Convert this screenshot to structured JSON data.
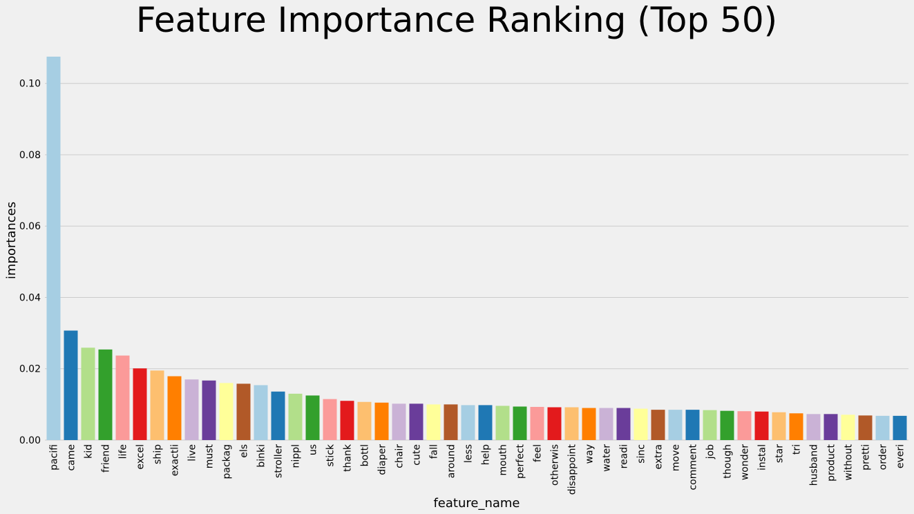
{
  "chart_data": {
    "type": "bar",
    "title": "Feature Importance Ranking (Top 50)",
    "xlabel": "feature_name",
    "ylabel": "importances",
    "ylim": [
      0,
      0.1075
    ],
    "yticks": [
      "0.00",
      "0.02",
      "0.04",
      "0.06",
      "0.08",
      "0.10"
    ],
    "grid": "horizontal",
    "palette": [
      "#a6cee3",
      "#1f78b4",
      "#b2df8a",
      "#33a02c",
      "#fb9a99",
      "#e31a1c",
      "#fdbf6f",
      "#ff7f00",
      "#cab2d6",
      "#6a3d9a",
      "#ffff99",
      "#b15928"
    ],
    "categories": [
      "pacifi",
      "came",
      "kid",
      "friend",
      "life",
      "excel",
      "ship",
      "exactli",
      "live",
      "must",
      "packag",
      "els",
      "binki",
      "stroller",
      "nippl",
      "us",
      "stick",
      "thank",
      "bottl",
      "diaper",
      "chair",
      "cute",
      "fall",
      "around",
      "less",
      "help",
      "mouth",
      "perfect",
      "feel",
      "otherwis",
      "disappoint",
      "way",
      "water",
      "readi",
      "sinc",
      "extra",
      "move",
      "comment",
      "job",
      "though",
      "wonder",
      "instal",
      "star",
      "tri",
      "husband",
      "product",
      "without",
      "pretti",
      "order",
      "everi"
    ],
    "values": [
      0.1075,
      0.0307,
      0.0259,
      0.0254,
      0.0237,
      0.0201,
      0.0195,
      0.0179,
      0.017,
      0.0167,
      0.016,
      0.0158,
      0.0154,
      0.0136,
      0.013,
      0.0125,
      0.0115,
      0.011,
      0.0107,
      0.0105,
      0.0102,
      0.0102,
      0.01,
      0.01,
      0.0098,
      0.0098,
      0.0096,
      0.0094,
      0.0093,
      0.0092,
      0.0092,
      0.009,
      0.009,
      0.009,
      0.0088,
      0.0085,
      0.0085,
      0.0085,
      0.0084,
      0.0082,
      0.0081,
      0.008,
      0.0078,
      0.0075,
      0.0073,
      0.0073,
      0.0071,
      0.0069,
      0.0068,
      0.0068
    ]
  }
}
